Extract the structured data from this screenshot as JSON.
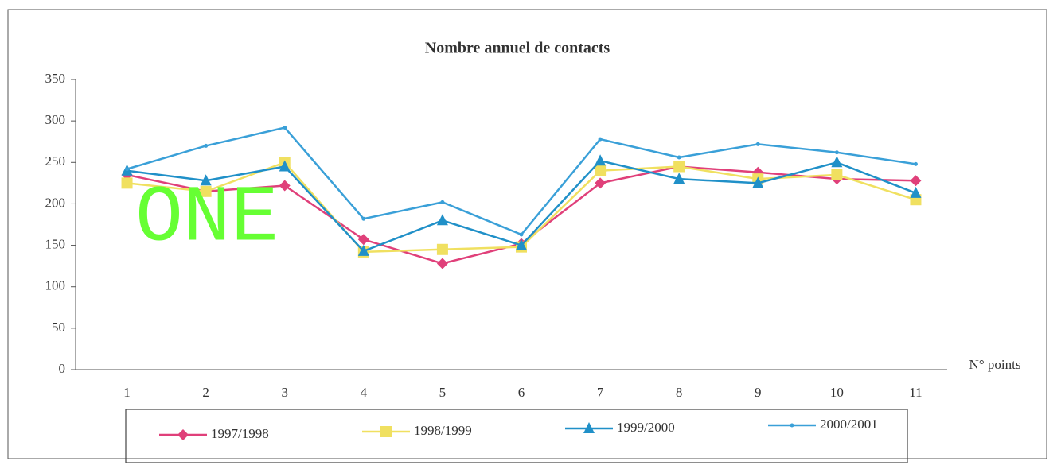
{
  "chart_data": {
    "type": "line",
    "title": "Nombre annuel de contacts",
    "x_label": "N° points",
    "annotation": "ONE",
    "categories": [
      "1",
      "2",
      "3",
      "4",
      "5",
      "6",
      "7",
      "8",
      "9",
      "10",
      "11"
    ],
    "series": [
      {
        "name": "1997/1998",
        "color": "#e0407a",
        "marker": "diamond",
        "values": [
          235,
          215,
          222,
          157,
          128,
          152,
          225,
          245,
          238,
          230,
          228
        ]
      },
      {
        "name": "1998/1999",
        "color": "#f0e060",
        "marker": "square",
        "values": [
          225,
          215,
          250,
          142,
          145,
          148,
          240,
          245,
          230,
          235,
          205
        ]
      },
      {
        "name": "1999/2000",
        "color": "#2090c8",
        "marker": "triangle",
        "values": [
          240,
          228,
          245,
          143,
          180,
          150,
          252,
          230,
          225,
          250,
          213
        ]
      },
      {
        "name": "2000/2001",
        "color": "#3aa0d8",
        "marker": "dot",
        "values": [
          242,
          270,
          292,
          182,
          202,
          163,
          278,
          256,
          272,
          262,
          248
        ]
      }
    ],
    "ylim": [
      0,
      350
    ],
    "yticks": [
      0,
      50,
      100,
      150,
      200,
      250,
      300,
      350
    ],
    "legend": "bottom"
  }
}
